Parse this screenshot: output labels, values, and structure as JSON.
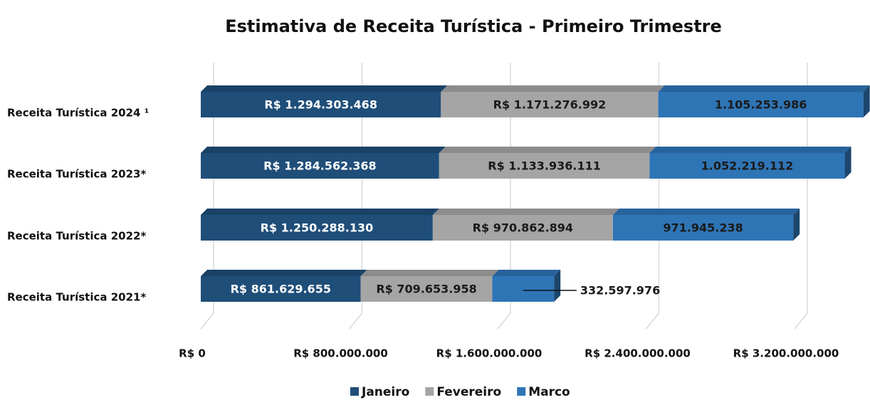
{
  "chart_data": {
    "type": "stacked_barh",
    "title": "Estimativa de Receita Turística - Primeiro Trimestre",
    "categories": [
      "Receita Turística 2024 ¹",
      "Receita Turística 2023*",
      "Receita Turística 2022*",
      "Receita Turística 2021*"
    ],
    "series": [
      {
        "name": "Janeiro",
        "color": "#1f4e79",
        "values": [
          1294303468,
          1284562368,
          1250288130,
          861629655
        ],
        "value_labels": [
          "R$ 1.294.303.468",
          "R$ 1.284.562.368",
          "R$ 1.250.288.130",
          "R$ 861.629.655"
        ]
      },
      {
        "name": "Fevereiro",
        "color": "#a5a5a5",
        "values": [
          1171276992,
          1133936111,
          970862894,
          709653958
        ],
        "value_labels": [
          "R$ 1.171.276.992",
          "R$ 1.133.936.111",
          "R$ 970.862.894",
          "R$ 709.653.958"
        ]
      },
      {
        "name": "Marco",
        "color": "#2e75b6",
        "values": [
          1105253986,
          1052219112,
          971945238,
          332597976
        ],
        "value_labels": [
          "1.105.253.986",
          "1.052.219.112",
          "971.945.238",
          "332.597.976"
        ]
      }
    ],
    "xlim": [
      0,
      3200000000
    ],
    "xticks": [
      {
        "value": 0,
        "label": "R$ 0"
      },
      {
        "value": 800000000,
        "label": "R$ 800.000.000"
      },
      {
        "value": 1600000000,
        "label": "R$ 1.600.000.000"
      },
      {
        "value": 2400000000,
        "label": "R$ 2.400.000.000"
      },
      {
        "value": 3200000000,
        "label": "R$ 3.200.000.000"
      }
    ],
    "grid": true,
    "legend": "bottom"
  }
}
